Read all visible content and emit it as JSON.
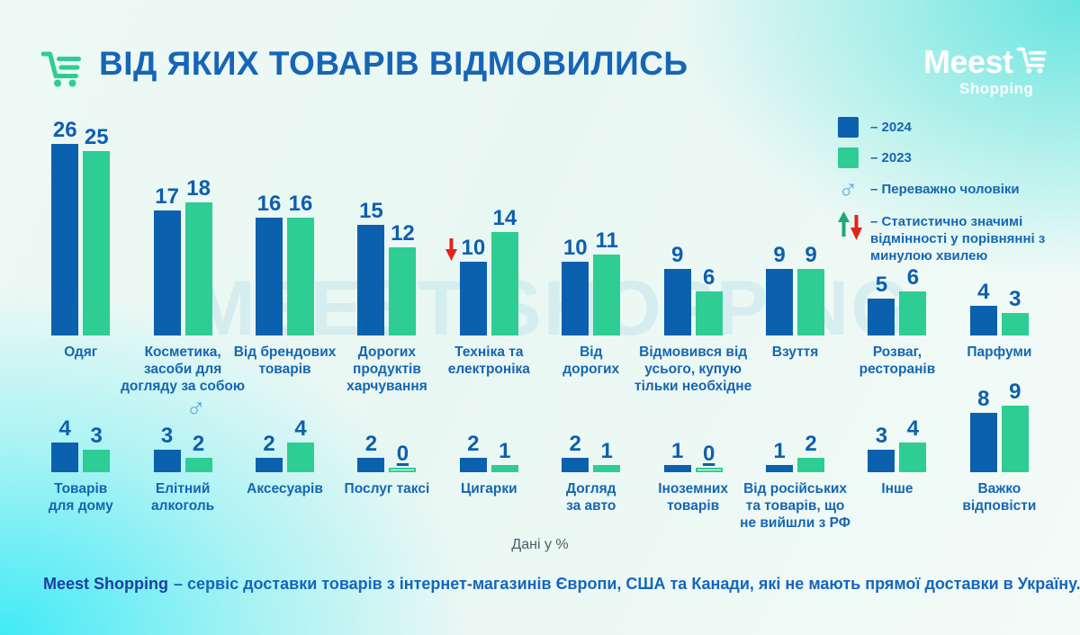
{
  "title": {
    "text": "ВІД ЯКИХ ТОВАРІВ ВІДМОВИЛИСЬ"
  },
  "logo": {
    "brand": "Meest",
    "sub": "Shopping"
  },
  "watermark": "MEEST SHOPPING",
  "legend": {
    "items": [
      {
        "id": "year-2024",
        "label": "– 2024",
        "swatch": "#0b61ad"
      },
      {
        "id": "year-2023",
        "label": "– 2023",
        "swatch": "#2ecd94"
      },
      {
        "id": "mostly-men",
        "label": "– Переважно чоловіки",
        "icon": "male-icon"
      },
      {
        "id": "significant-diff",
        "label": "– Статистично значимі відмінності у порівнянні з минулою хвилею",
        "icon": "up-down-arrows-icon"
      }
    ]
  },
  "chart_data": {
    "type": "bar",
    "series": [
      "2024",
      "2023"
    ],
    "unit": "%",
    "colors": {
      "2024": "#0b61ad",
      "2023": "#2ecd94"
    },
    "ylim": [
      0,
      26
    ],
    "rows": [
      {
        "groups": [
          {
            "label": "Одяг",
            "values": [
              26,
              25
            ]
          },
          {
            "label": "Косметика,\nзасоби для\nдогляду за собою",
            "values": [
              17,
              18
            ]
          },
          {
            "label": "Від брендових\nтоварів",
            "values": [
              16,
              16
            ]
          },
          {
            "label": "Дорогих\nпродуктів\nхарчування",
            "values": [
              15,
              12
            ]
          },
          {
            "label": "Техніка та\nелектроніка",
            "values": [
              10,
              14
            ],
            "marker": "significant-decrease"
          },
          {
            "label": "Від\nдорогих",
            "values": [
              10,
              11
            ]
          },
          {
            "label": "Відмовився від\nусього, купую\nтільки необхідне",
            "values": [
              9,
              6
            ]
          },
          {
            "label": "Взуття",
            "values": [
              9,
              9
            ]
          },
          {
            "label": "Розваг,\nресторанів",
            "values": [
              5,
              6
            ]
          },
          {
            "label": "Парфуми",
            "values": [
              4,
              3
            ]
          }
        ]
      },
      {
        "groups": [
          {
            "label": "Товарів\nдля дому",
            "values": [
              4,
              3
            ]
          },
          {
            "label": "Елітний\nалкоголь",
            "values": [
              3,
              2
            ],
            "marker": "mostly-men"
          },
          {
            "label": "Аксесуарів",
            "values": [
              2,
              4
            ]
          },
          {
            "label": "Послуг таксі",
            "values": [
              2,
              0
            ]
          },
          {
            "label": "Цигарки",
            "values": [
              2,
              1
            ]
          },
          {
            "label": "Догляд\nза авто",
            "values": [
              2,
              1
            ]
          },
          {
            "label": "Іноземних\nтоварів",
            "values": [
              1,
              0
            ]
          },
          {
            "label": "Від російських\nта товарів, що\nне вийшли з РФ",
            "values": [
              1,
              2
            ]
          },
          {
            "label": "Інше",
            "values": [
              3,
              4
            ]
          },
          {
            "label": "Важко\nвідповісти",
            "values": [
              8,
              9
            ]
          }
        ]
      }
    ]
  },
  "footer": {
    "units_note": "Дані у %",
    "brand": "Meest Shopping",
    "description": "– сервіс доставки товарів з інтернет-магазинів Європи, США та Канади, які не мають прямої доставки в Україну."
  }
}
